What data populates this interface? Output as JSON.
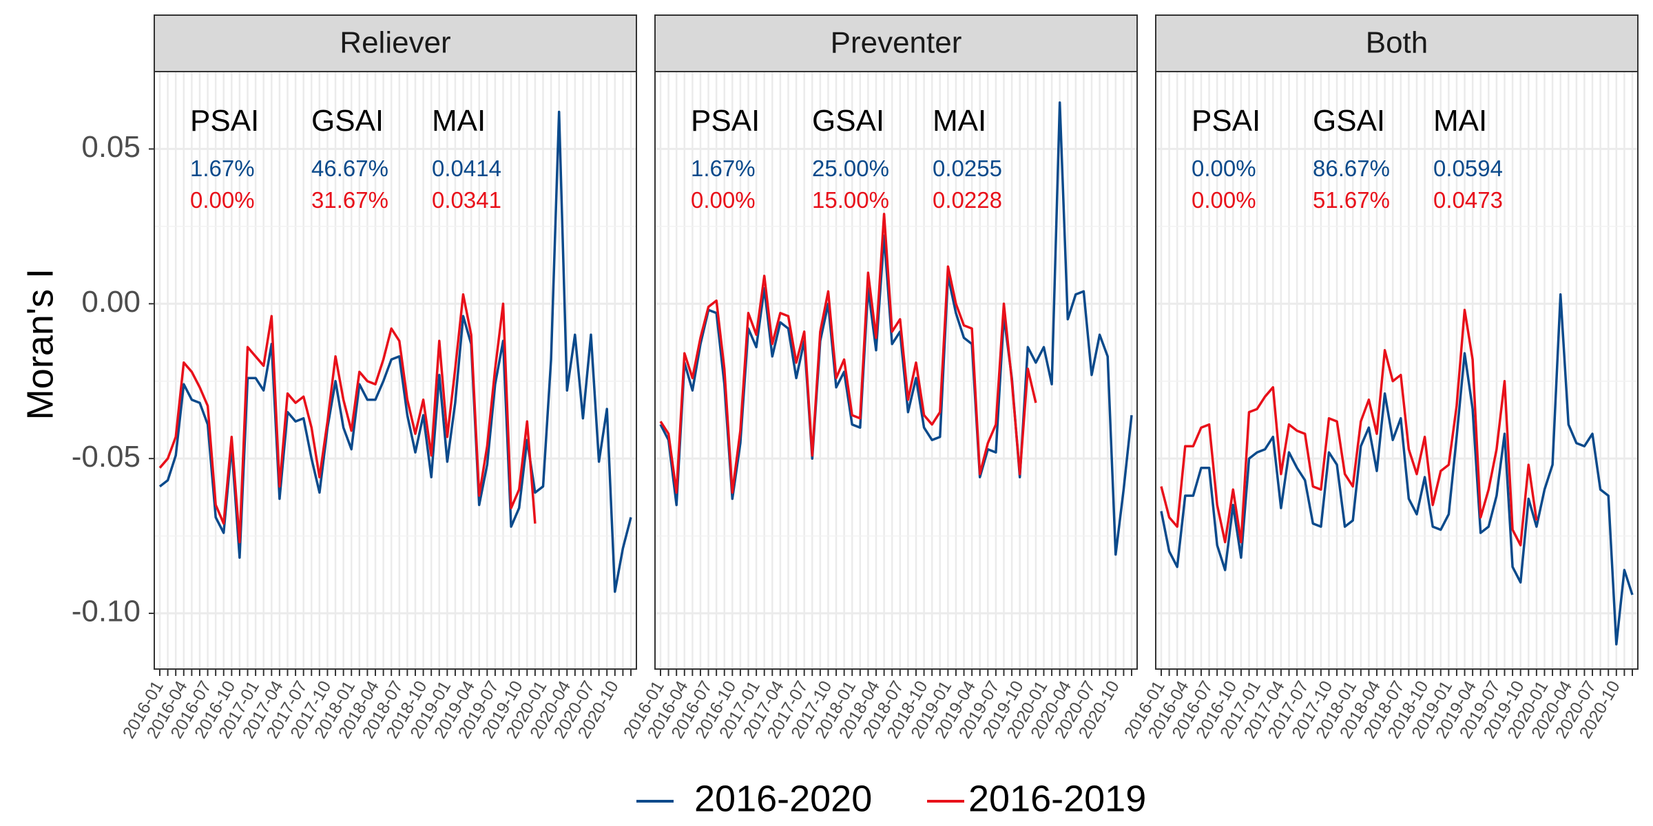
{
  "colors": {
    "series_2016_2020": "#0b4a8b",
    "series_2016_2019": "#e8101a",
    "strip_bg": "#d9d9d9",
    "grid_major": "#ebebeb",
    "grid_minor": "#f2f2f2"
  },
  "y_axis_label": "Moran's I",
  "chart_data": {
    "type": "line",
    "facet_by": "medication type",
    "ylabel": "Moran's I",
    "xlabel": "",
    "ylim": [
      -0.118,
      0.075
    ],
    "yticks": [
      -0.1,
      -0.05,
      0.0,
      0.05
    ],
    "ytick_labels": [
      "-0.10",
      "-0.05",
      "0.00",
      "0.05"
    ],
    "grid": true,
    "legend_position": "bottom",
    "x": [
      "2016-01",
      "2016-02",
      "2016-03",
      "2016-04",
      "2016-05",
      "2016-06",
      "2016-07",
      "2016-08",
      "2016-09",
      "2016-10",
      "2016-11",
      "2016-12",
      "2017-01",
      "2017-02",
      "2017-03",
      "2017-04",
      "2017-05",
      "2017-06",
      "2017-07",
      "2017-08",
      "2017-09",
      "2017-10",
      "2017-11",
      "2017-12",
      "2018-01",
      "2018-02",
      "2018-03",
      "2018-04",
      "2018-05",
      "2018-06",
      "2018-07",
      "2018-08",
      "2018-09",
      "2018-10",
      "2018-11",
      "2018-12",
      "2019-01",
      "2019-02",
      "2019-03",
      "2019-04",
      "2019-05",
      "2019-06",
      "2019-07",
      "2019-08",
      "2019-09",
      "2019-10",
      "2019-11",
      "2019-12",
      "2020-01",
      "2020-02",
      "2020-03",
      "2020-04",
      "2020-05",
      "2020-06",
      "2020-07",
      "2020-08",
      "2020-09",
      "2020-10",
      "2020-11",
      "2020-12"
    ],
    "x_tick_labels": [
      "2016-01",
      "2016-04",
      "2016-07",
      "2016-10",
      "2017-01",
      "2017-04",
      "2017-07",
      "2017-10",
      "2018-01",
      "2018-04",
      "2018-07",
      "2018-10",
      "2019-01",
      "2019-04",
      "2019-07",
      "2019-10",
      "2020-01",
      "2020-04",
      "2020-07",
      "2020-10"
    ],
    "legend": [
      {
        "name": "2016-2020",
        "color": "#0b4a8b"
      },
      {
        "name": "2016-2019",
        "color": "#e8101a"
      }
    ],
    "facets": [
      {
        "title": "Reliever",
        "stat_headers": [
          "PSAI",
          "GSAI",
          "MAI"
        ],
        "stats_2016_2020": [
          "1.67%",
          "46.67%",
          "0.0414"
        ],
        "stats_2016_2019": [
          "0.00%",
          "31.67%",
          "0.0341"
        ],
        "series": [
          {
            "name": "2016-2020",
            "values": [
              -0.059,
              -0.057,
              -0.049,
              -0.026,
              -0.031,
              -0.032,
              -0.039,
              -0.069,
              -0.074,
              -0.046,
              -0.082,
              -0.024,
              -0.024,
              -0.028,
              -0.013,
              -0.063,
              -0.035,
              -0.038,
              -0.037,
              -0.05,
              -0.061,
              -0.04,
              -0.025,
              -0.04,
              -0.047,
              -0.026,
              -0.031,
              -0.031,
              -0.025,
              -0.018,
              -0.017,
              -0.036,
              -0.048,
              -0.036,
              -0.056,
              -0.023,
              -0.051,
              -0.032,
              -0.004,
              -0.013,
              -0.065,
              -0.052,
              -0.026,
              -0.012,
              -0.072,
              -0.066,
              -0.044,
              -0.061,
              -0.059,
              -0.018,
              0.062,
              -0.028,
              -0.01,
              -0.037,
              -0.01,
              -0.051,
              -0.034,
              -0.093,
              -0.079,
              -0.069
            ]
          },
          {
            "name": "2016-2019",
            "values": [
              -0.053,
              -0.05,
              -0.043,
              -0.019,
              -0.022,
              -0.027,
              -0.033,
              -0.065,
              -0.071,
              -0.043,
              -0.077,
              -0.014,
              -0.017,
              -0.02,
              -0.004,
              -0.059,
              -0.029,
              -0.032,
              -0.03,
              -0.04,
              -0.056,
              -0.038,
              -0.017,
              -0.031,
              -0.041,
              -0.022,
              -0.025,
              -0.026,
              -0.018,
              -0.008,
              -0.012,
              -0.031,
              -0.042,
              -0.031,
              -0.049,
              -0.012,
              -0.043,
              -0.021,
              0.003,
              -0.01,
              -0.062,
              -0.046,
              -0.021,
              0.0,
              -0.066,
              -0.06,
              -0.038,
              -0.071
            ]
          }
        ]
      },
      {
        "title": "Preventer",
        "stat_headers": [
          "PSAI",
          "GSAI",
          "MAI"
        ],
        "stats_2016_2020": [
          "1.67%",
          "25.00%",
          "0.0255"
        ],
        "stats_2016_2019": [
          "0.00%",
          "15.00%",
          "0.0228"
        ],
        "series": [
          {
            "name": "2016-2020",
            "values": [
              -0.039,
              -0.044,
              -0.065,
              -0.019,
              -0.028,
              -0.013,
              -0.002,
              -0.003,
              -0.026,
              -0.063,
              -0.045,
              -0.008,
              -0.014,
              0.005,
              -0.017,
              -0.006,
              -0.008,
              -0.024,
              -0.012,
              -0.05,
              -0.012,
              0.0,
              -0.027,
              -0.022,
              -0.039,
              -0.04,
              0.005,
              -0.015,
              0.022,
              -0.013,
              -0.009,
              -0.035,
              -0.024,
              -0.04,
              -0.044,
              -0.043,
              0.009,
              -0.003,
              -0.011,
              -0.013,
              -0.056,
              -0.047,
              -0.048,
              -0.004,
              -0.024,
              -0.056,
              -0.014,
              -0.019,
              -0.014,
              -0.026,
              0.065,
              -0.005,
              0.003,
              0.004,
              -0.023,
              -0.01,
              -0.017,
              -0.081,
              -0.06,
              -0.036
            ]
          },
          {
            "name": "2016-2019",
            "values": [
              -0.038,
              -0.042,
              -0.061,
              -0.016,
              -0.024,
              -0.011,
              -0.001,
              0.001,
              -0.021,
              -0.061,
              -0.041,
              -0.003,
              -0.01,
              0.009,
              -0.013,
              -0.003,
              -0.004,
              -0.019,
              -0.009,
              -0.049,
              -0.009,
              0.004,
              -0.024,
              -0.018,
              -0.036,
              -0.037,
              0.01,
              -0.011,
              0.029,
              -0.009,
              -0.005,
              -0.031,
              -0.019,
              -0.036,
              -0.039,
              -0.035,
              0.012,
              0.0,
              -0.007,
              -0.008,
              -0.055,
              -0.045,
              -0.039,
              0.0,
              -0.025,
              -0.055,
              -0.021,
              -0.032
            ]
          }
        ]
      },
      {
        "title": "Both",
        "stat_headers": [
          "PSAI",
          "GSAI",
          "MAI"
        ],
        "stats_2016_2020": [
          "0.00%",
          "86.67%",
          "0.0594"
        ],
        "stats_2016_2019": [
          "0.00%",
          "51.67%",
          "0.0473"
        ],
        "series": [
          {
            "name": "2016-2020",
            "values": [
              -0.067,
              -0.08,
              -0.085,
              -0.062,
              -0.062,
              -0.053,
              -0.053,
              -0.078,
              -0.086,
              -0.065,
              -0.082,
              -0.05,
              -0.048,
              -0.047,
              -0.043,
              -0.066,
              -0.048,
              -0.053,
              -0.057,
              -0.071,
              -0.072,
              -0.048,
              -0.052,
              -0.072,
              -0.07,
              -0.046,
              -0.04,
              -0.054,
              -0.029,
              -0.044,
              -0.037,
              -0.063,
              -0.068,
              -0.056,
              -0.072,
              -0.073,
              -0.068,
              -0.043,
              -0.016,
              -0.034,
              -0.074,
              -0.072,
              -0.062,
              -0.042,
              -0.085,
              -0.09,
              -0.063,
              -0.072,
              -0.06,
              -0.052,
              0.003,
              -0.039,
              -0.045,
              -0.046,
              -0.042,
              -0.06,
              -0.062,
              -0.11,
              -0.086,
              -0.094
            ]
          },
          {
            "name": "2016-2019",
            "values": [
              -0.059,
              -0.069,
              -0.072,
              -0.046,
              -0.046,
              -0.04,
              -0.039,
              -0.065,
              -0.077,
              -0.06,
              -0.077,
              -0.035,
              -0.034,
              -0.03,
              -0.027,
              -0.055,
              -0.039,
              -0.041,
              -0.042,
              -0.059,
              -0.06,
              -0.037,
              -0.038,
              -0.055,
              -0.059,
              -0.038,
              -0.031,
              -0.042,
              -0.015,
              -0.025,
              -0.023,
              -0.047,
              -0.055,
              -0.043,
              -0.065,
              -0.054,
              -0.052,
              -0.033,
              -0.002,
              -0.018,
              -0.069,
              -0.06,
              -0.047,
              -0.025,
              -0.073,
              -0.078,
              -0.052,
              -0.07
            ]
          }
        ]
      }
    ]
  }
}
